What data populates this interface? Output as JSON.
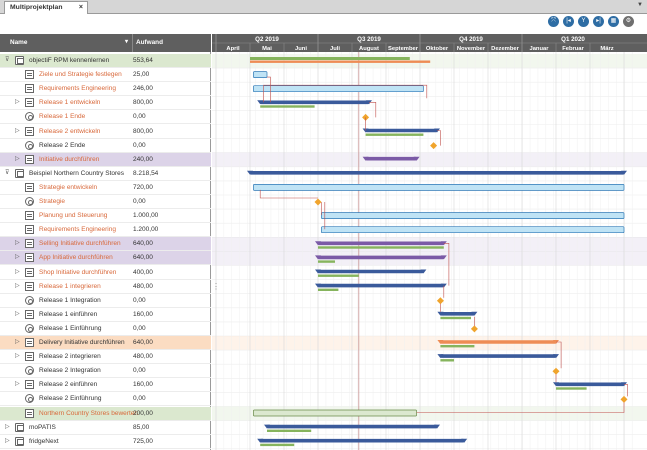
{
  "tab": {
    "title": "Multiprojektplan",
    "close": "×"
  },
  "menu_arrow": "▼",
  "toolbar": {
    "buttons": [
      "fit-icon",
      "first-icon",
      "filter-icon",
      "last-icon",
      "grid-icon",
      "settings-icon"
    ]
  },
  "grid": {
    "header": {
      "name": "Name",
      "sort": "▾",
      "effort": "Aufwand"
    },
    "rows": [
      {
        "level": 0,
        "exp": "⊽",
        "icon": "proj",
        "name": "objectiF RPM kennenlernen",
        "value": "553,64",
        "style": "green"
      },
      {
        "level": 1,
        "exp": "",
        "icon": "task",
        "name": "Ziele und Strategie festlegen",
        "value": "25,00",
        "style": "orange"
      },
      {
        "level": 1,
        "exp": "",
        "icon": "task",
        "name": "Requirements Engineering",
        "value": "246,00",
        "style": "orange"
      },
      {
        "level": 1,
        "exp": "▷",
        "icon": "task",
        "name": "Release 1 entwickeln",
        "value": "800,00",
        "style": "orange"
      },
      {
        "level": 1,
        "exp": "",
        "icon": "ms",
        "name": "Release 1 Ende",
        "value": "0,00",
        "style": "orange"
      },
      {
        "level": 1,
        "exp": "▷",
        "icon": "task",
        "name": "Release 2 entwickeln",
        "value": "800,00",
        "style": "orange"
      },
      {
        "level": 1,
        "exp": "",
        "icon": "ms",
        "name": "Release 2 Ende",
        "value": "0,00",
        "style": ""
      },
      {
        "level": 1,
        "exp": "▷",
        "icon": "task",
        "name": "Initiative durchführen",
        "value": "240,00",
        "style": "purple-orange"
      },
      {
        "level": 0,
        "exp": "⊽",
        "icon": "proj",
        "name": "Beispiel Northern Country Stores",
        "value": "8.218,54",
        "style": ""
      },
      {
        "level": 1,
        "exp": "",
        "icon": "task",
        "name": "Strategie entwickeln",
        "value": "720,00",
        "style": "orange"
      },
      {
        "level": 1,
        "exp": "",
        "icon": "ms",
        "name": "Strategie",
        "value": "0,00",
        "style": "orange"
      },
      {
        "level": 1,
        "exp": "",
        "icon": "task",
        "name": "Planung und Steuerung",
        "value": "1.000,00",
        "style": "orange"
      },
      {
        "level": 1,
        "exp": "",
        "icon": "task",
        "name": "Requirements Engineering",
        "value": "1.200,00",
        "style": "orange"
      },
      {
        "level": 1,
        "exp": "▷",
        "icon": "task",
        "name": "Selling Initiative durchführen",
        "value": "640,00",
        "style": "purple-orange"
      },
      {
        "level": 1,
        "exp": "▷",
        "icon": "task",
        "name": "App Initiative durchführen",
        "value": "640,00",
        "style": "purple-orange"
      },
      {
        "level": 1,
        "exp": "▷",
        "icon": "task",
        "name": "Shop Initiative durchführen",
        "value": "400,00",
        "style": "orange"
      },
      {
        "level": 1,
        "exp": "▷",
        "icon": "task",
        "name": "Release 1 integrieren",
        "value": "480,00",
        "style": "orange"
      },
      {
        "level": 1,
        "exp": "",
        "icon": "ms",
        "name": "Release 1 Integration",
        "value": "0,00",
        "style": ""
      },
      {
        "level": 1,
        "exp": "▷",
        "icon": "task",
        "name": "Release 1 einführen",
        "value": "160,00",
        "style": ""
      },
      {
        "level": 1,
        "exp": "",
        "icon": "ms",
        "name": "Release 1 Einführung",
        "value": "0,00",
        "style": ""
      },
      {
        "level": 1,
        "exp": "▷",
        "icon": "task",
        "name": "Delivery Initiative durchführen",
        "value": "640,00",
        "style": "peach"
      },
      {
        "level": 1,
        "exp": "▷",
        "icon": "task",
        "name": "Release 2 integrieren",
        "value": "480,00",
        "style": ""
      },
      {
        "level": 1,
        "exp": "",
        "icon": "ms",
        "name": "Release 2 Integration",
        "value": "0,00",
        "style": ""
      },
      {
        "level": 1,
        "exp": "▷",
        "icon": "task",
        "name": "Release 2 einführen",
        "value": "160,00",
        "style": ""
      },
      {
        "level": 1,
        "exp": "",
        "icon": "ms",
        "name": "Release 2 Einführung",
        "value": "0,00",
        "style": ""
      },
      {
        "level": 1,
        "exp": "",
        "icon": "task",
        "name": "Northern Country Stores bewerten",
        "value": "200,00",
        "style": "green-orange"
      },
      {
        "level": 0,
        "exp": "▷",
        "icon": "proj",
        "name": "moPATIS",
        "value": "85,00",
        "style": ""
      },
      {
        "level": 0,
        "exp": "▷",
        "icon": "proj",
        "name": "fridgeNext",
        "value": "725,00",
        "style": ""
      }
    ]
  },
  "timeline": {
    "quarters": [
      "Q2 2019",
      "Q3 2019",
      "Q4 2019",
      "Q1 2020"
    ],
    "months": [
      "April",
      "Mai",
      "Juni",
      "Juli",
      "August",
      "September",
      "Oktober",
      "November",
      "Dezember",
      "Januar",
      "Februar",
      "März"
    ]
  },
  "colors": {
    "blue": "#3a5a9b",
    "orange": "#ee8c55",
    "green": "#86b45d",
    "lightblue": "#bfe3f5",
    "lightblue_border": "#2f79b6",
    "purple": "#7b5aa6",
    "milestone": "#f0a42c",
    "link": "#c0504d",
    "row_green": "#dbe8cf",
    "row_purple": "#dcd3e8",
    "row_peach": "#fbdcc2"
  }
}
